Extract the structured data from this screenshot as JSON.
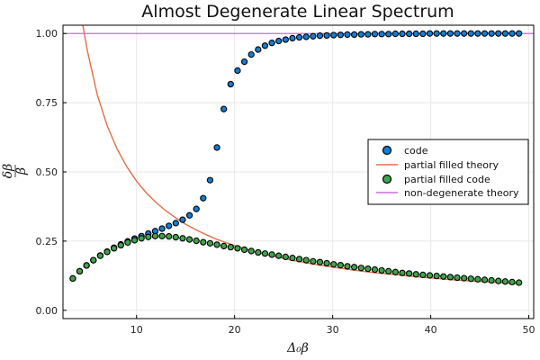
{
  "chart_data": {
    "type": "scatter",
    "title": "Almost Degenerate Linear Spectrum",
    "xlabel": "Δ₀β",
    "ylabel_num": "δβ",
    "ylabel_den": "β",
    "xlim": [
      2.5,
      50.5
    ],
    "ylim": [
      -0.03,
      1.03
    ],
    "x_ticks": [
      10,
      20,
      30,
      40,
      50
    ],
    "y_ticks": [
      0.0,
      0.25,
      0.5,
      0.75,
      1.0
    ],
    "x_tick_labels": [
      "10",
      "20",
      "30",
      "40",
      "50"
    ],
    "y_tick_labels": [
      "0.00",
      "0.25",
      "0.50",
      "0.75",
      "1.00"
    ],
    "grid": true,
    "legend_position": "right",
    "series": [
      {
        "name": "code",
        "kind": "scatter",
        "color": "#0f7fd6",
        "x": [
          3.5,
          4.2,
          4.9,
          5.6,
          6.3,
          7.0,
          7.7,
          8.4,
          9.1,
          9.8,
          10.5,
          11.2,
          11.9,
          12.6,
          13.3,
          14.0,
          14.7,
          15.4,
          16.1,
          16.8,
          17.5,
          18.2,
          18.9,
          19.6,
          20.3,
          21.0,
          21.7,
          22.4,
          23.1,
          23.8,
          24.5,
          25.2,
          25.9,
          26.6,
          27.3,
          28.0,
          28.7,
          29.4,
          30.1,
          30.8,
          31.5,
          32.2,
          32.9,
          33.6,
          34.3,
          35.0,
          35.7,
          36.4,
          37.1,
          37.8,
          38.5,
          39.2,
          39.9,
          40.6,
          41.3,
          42.0,
          42.7,
          43.4,
          44.1,
          44.8,
          45.5,
          46.2,
          46.9,
          47.6,
          48.3,
          49.0
        ],
        "values": [
          0.115,
          0.141,
          0.162,
          0.181,
          0.198,
          0.212,
          0.226,
          0.238,
          0.249,
          0.259,
          0.268,
          0.277,
          0.286,
          0.295,
          0.305,
          0.315,
          0.327,
          0.343,
          0.366,
          0.405,
          0.47,
          0.588,
          0.727,
          0.817,
          0.866,
          0.898,
          0.924,
          0.942,
          0.956,
          0.966,
          0.973,
          0.978,
          0.983,
          0.986,
          0.988,
          0.99,
          0.992,
          0.993,
          0.994,
          0.995,
          0.996,
          0.996,
          0.997,
          0.997,
          0.998,
          0.998,
          0.998,
          0.999,
          0.999,
          0.999,
          0.999,
          0.999,
          1.0,
          1.0,
          1.0,
          1.0,
          1.0,
          1.0,
          1.0,
          1.0,
          1.0,
          1.0,
          1.0,
          1.0,
          1.0,
          1.0
        ]
      },
      {
        "name": "partial filled theory",
        "kind": "line",
        "color": "#e26f46",
        "x": [
          4.5,
          5,
          6,
          7,
          8,
          9,
          10,
          11,
          12,
          13,
          14,
          15,
          16,
          17,
          18,
          19,
          20,
          22,
          24,
          26,
          28,
          30,
          32,
          34,
          36,
          38,
          40,
          42,
          44,
          46,
          48,
          49
        ],
        "values": [
          1.035,
          0.935,
          0.778,
          0.667,
          0.584,
          0.519,
          0.467,
          0.424,
          0.389,
          0.359,
          0.334,
          0.311,
          0.292,
          0.275,
          0.259,
          0.246,
          0.234,
          0.212,
          0.195,
          0.18,
          0.167,
          0.156,
          0.146,
          0.137,
          0.13,
          0.123,
          0.117,
          0.111,
          0.106,
          0.102,
          0.097,
          0.095
        ]
      },
      {
        "name": "partial filled code",
        "kind": "scatter",
        "color": "#3ea44b",
        "x": [
          3.5,
          4.2,
          4.9,
          5.6,
          6.3,
          7.0,
          7.7,
          8.4,
          9.1,
          9.8,
          10.5,
          11.2,
          11.9,
          12.6,
          13.3,
          14.0,
          14.7,
          15.4,
          16.1,
          16.8,
          17.5,
          18.2,
          18.9,
          19.6,
          20.3,
          21.0,
          21.7,
          22.4,
          23.1,
          23.8,
          24.5,
          25.2,
          25.9,
          26.6,
          27.3,
          28.0,
          28.7,
          29.4,
          30.1,
          30.8,
          31.5,
          32.2,
          32.9,
          33.6,
          34.3,
          35.0,
          35.7,
          36.4,
          37.1,
          37.8,
          38.5,
          39.2,
          39.9,
          40.6,
          41.3,
          42.0,
          42.7,
          43.4,
          44.1,
          44.8,
          45.5,
          46.2,
          46.9,
          47.6,
          48.3,
          49.0
        ],
        "values": [
          0.115,
          0.141,
          0.162,
          0.181,
          0.197,
          0.211,
          0.224,
          0.235,
          0.245,
          0.253,
          0.26,
          0.265,
          0.268,
          0.268,
          0.267,
          0.264,
          0.26,
          0.256,
          0.251,
          0.246,
          0.242,
          0.237,
          0.232,
          0.228,
          0.224,
          0.219,
          0.214,
          0.209,
          0.205,
          0.201,
          0.197,
          0.193,
          0.189,
          0.185,
          0.181,
          0.177,
          0.174,
          0.17,
          0.166,
          0.163,
          0.159,
          0.156,
          0.153,
          0.15,
          0.147,
          0.144,
          0.141,
          0.138,
          0.135,
          0.133,
          0.13,
          0.128,
          0.126,
          0.124,
          0.122,
          0.12,
          0.118,
          0.116,
          0.114,
          0.112,
          0.11,
          0.108,
          0.106,
          0.104,
          0.102,
          0.1
        ]
      },
      {
        "name": "non-degenerate theory",
        "kind": "hline",
        "color": "#c86ddc",
        "y": 1.0
      }
    ]
  }
}
